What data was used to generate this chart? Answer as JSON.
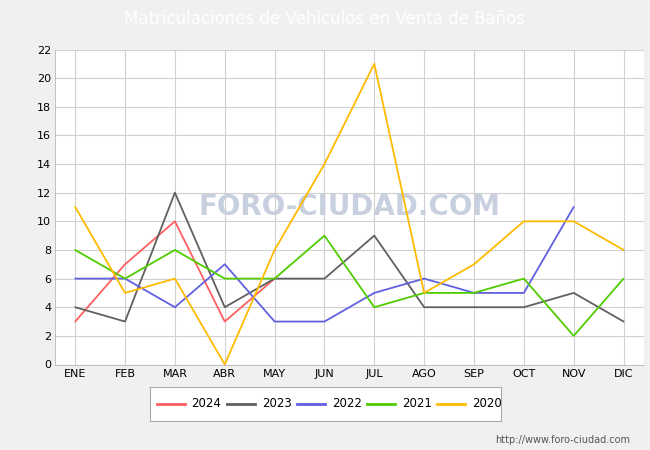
{
  "title": "Matriculaciones de Vehiculos en Venta de Baños",
  "months": [
    "ENE",
    "FEB",
    "MAR",
    "ABR",
    "MAY",
    "JUN",
    "JUL",
    "AGO",
    "SEP",
    "OCT",
    "NOV",
    "DIC"
  ],
  "series": {
    "2024": [
      3,
      7,
      10,
      3,
      6,
      null,
      null,
      null,
      null,
      null,
      null,
      null
    ],
    "2023": [
      4,
      3,
      12,
      4,
      6,
      6,
      9,
      4,
      4,
      4,
      5,
      3
    ],
    "2022": [
      6,
      6,
      4,
      7,
      3,
      3,
      5,
      6,
      5,
      5,
      11,
      null
    ],
    "2021": [
      8,
      6,
      8,
      6,
      6,
      9,
      4,
      5,
      5,
      6,
      2,
      6
    ],
    "2020": [
      11,
      5,
      6,
      0,
      8,
      14,
      21,
      5,
      7,
      10,
      10,
      8
    ]
  },
  "colors": {
    "2024": "#ff6060",
    "2023": "#606060",
    "2022": "#6060e0",
    "2021": "#50cc00",
    "2020": "#ffbb00"
  },
  "ylim": [
    0,
    22
  ],
  "yticks": [
    0,
    2,
    4,
    6,
    8,
    10,
    12,
    14,
    16,
    18,
    20,
    22
  ],
  "header_color": "#4a90d9",
  "header_text_color": "#ffffff",
  "plot_bg_color": "#ffffff",
  "outer_bg_color": "#f0f0f0",
  "grid_color": "#d0d0d0",
  "watermark_text": "FORO-CIUDAD.COM",
  "watermark_color": "#c8d0e0",
  "url_text": "http://www.foro-ciudad.com",
  "legend_years": [
    "2024",
    "2023",
    "2022",
    "2021",
    "2020"
  ]
}
